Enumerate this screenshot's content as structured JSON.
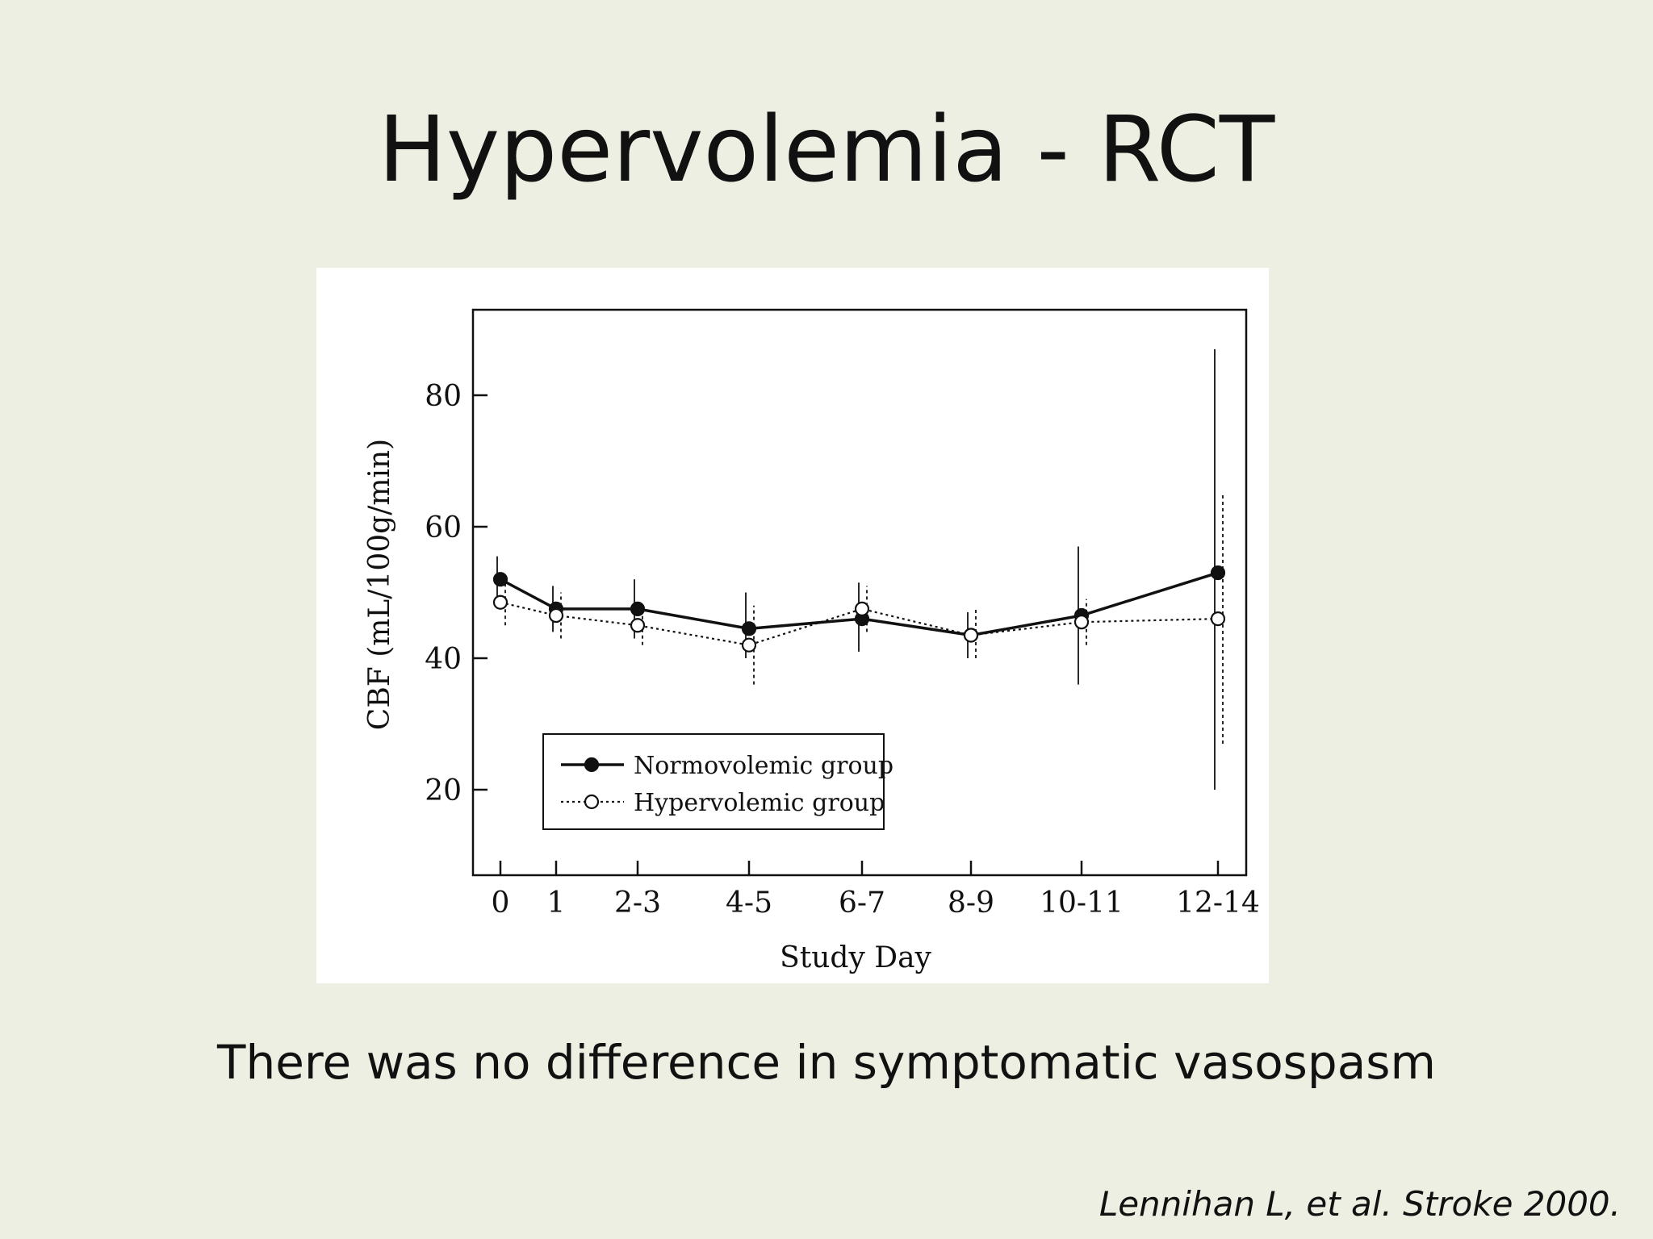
{
  "slide": {
    "title": "Hypervolemia - RCT",
    "caption": "There was no difference in symptomatic vasospasm",
    "citation": "Lennihan L, et al. Stroke 2000."
  },
  "chart_data": {
    "type": "line",
    "title": "",
    "xlabel": "Study Day",
    "ylabel": "CBF (mL/100g/min)",
    "categories": [
      "0",
      "1",
      "2-3",
      "4-5",
      "6-7",
      "8-9",
      "10-11",
      "12-14"
    ],
    "yticks": [
      20,
      40,
      60,
      80
    ],
    "ylim": [
      7,
      93
    ],
    "grid": false,
    "legend_position": "bottom-left",
    "series": [
      {
        "name": "Normovolemic group",
        "marker": "filled-circle",
        "line_style": "solid",
        "values": [
          52,
          47.5,
          47.5,
          44.5,
          46,
          43.5,
          46.5,
          53
        ],
        "error_low": [
          49,
          44,
          43,
          40,
          41,
          40,
          36,
          20
        ],
        "error_high": [
          55.5,
          51,
          52,
          50,
          51.5,
          47,
          57,
          87
        ]
      },
      {
        "name": "Hypervolemic group",
        "marker": "open-circle",
        "line_style": "dotted",
        "values": [
          48.5,
          46.5,
          45,
          42,
          47.5,
          43.5,
          45.5,
          46
        ],
        "error_low": [
          45,
          43,
          42,
          36,
          44,
          40,
          42,
          27
        ],
        "error_high": [
          52,
          50,
          48,
          48,
          51,
          47.5,
          49,
          65
        ]
      }
    ]
  }
}
